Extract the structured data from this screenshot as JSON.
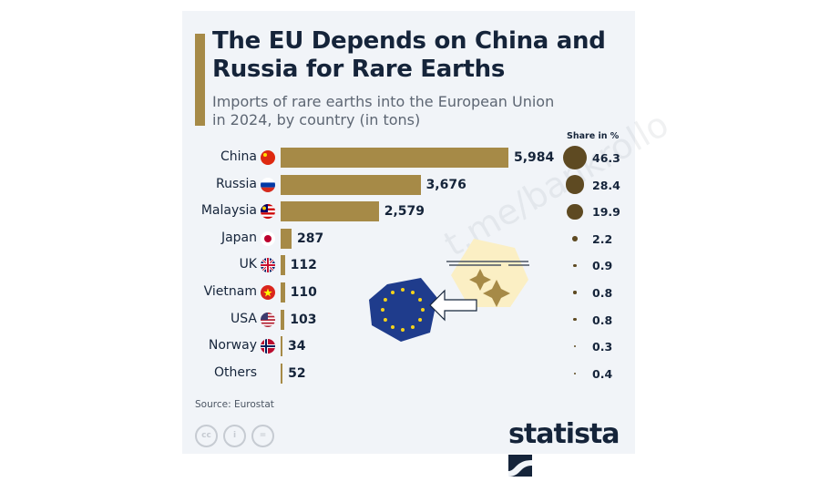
{
  "chart_data": {
    "type": "bar",
    "orientation": "horizontal",
    "title": "The EU Depends on China and Russia for Rare Earths",
    "subtitle": "Imports of rare earths into the European Union in 2024, by country (in tons)",
    "categories": [
      "China",
      "Russia",
      "Malaysia",
      "Japan",
      "UK",
      "Vietnam",
      "USA",
      "Norway",
      "Others"
    ],
    "values": [
      5984,
      3676,
      2579,
      287,
      112,
      110,
      103,
      34,
      52
    ],
    "value_labels": [
      "5,984",
      "3,676",
      "2,579",
      "287",
      "112",
      "110",
      "103",
      "34",
      "52"
    ],
    "share_header": "Share in %",
    "shares": [
      46.3,
      28.4,
      19.9,
      2.2,
      0.9,
      0.8,
      0.8,
      0.3,
      0.4
    ],
    "share_labels": [
      "46.3",
      "28.4",
      "19.9",
      "2.2",
      "0.9",
      "0.8",
      "0.8",
      "0.3",
      "0.4"
    ],
    "flags": [
      "china-flag",
      "russia-flag",
      "malaysia-flag",
      "japan-flag",
      "uk-flag",
      "vietnam-flag",
      "usa-flag",
      "norway-flag",
      ""
    ],
    "bar_color": "#a68a47",
    "bubble_color": "#5e4a22",
    "source": "Source: Eurostat"
  },
  "brand": "statista",
  "watermark": "t.me/bankrollo",
  "license_icons": [
    "cc",
    "by",
    "nd"
  ],
  "colors": {
    "title": "#15243a",
    "background": "#f1f4f8",
    "eu_blue": "#1f3c8c",
    "eu_star": "#f6d31a"
  }
}
